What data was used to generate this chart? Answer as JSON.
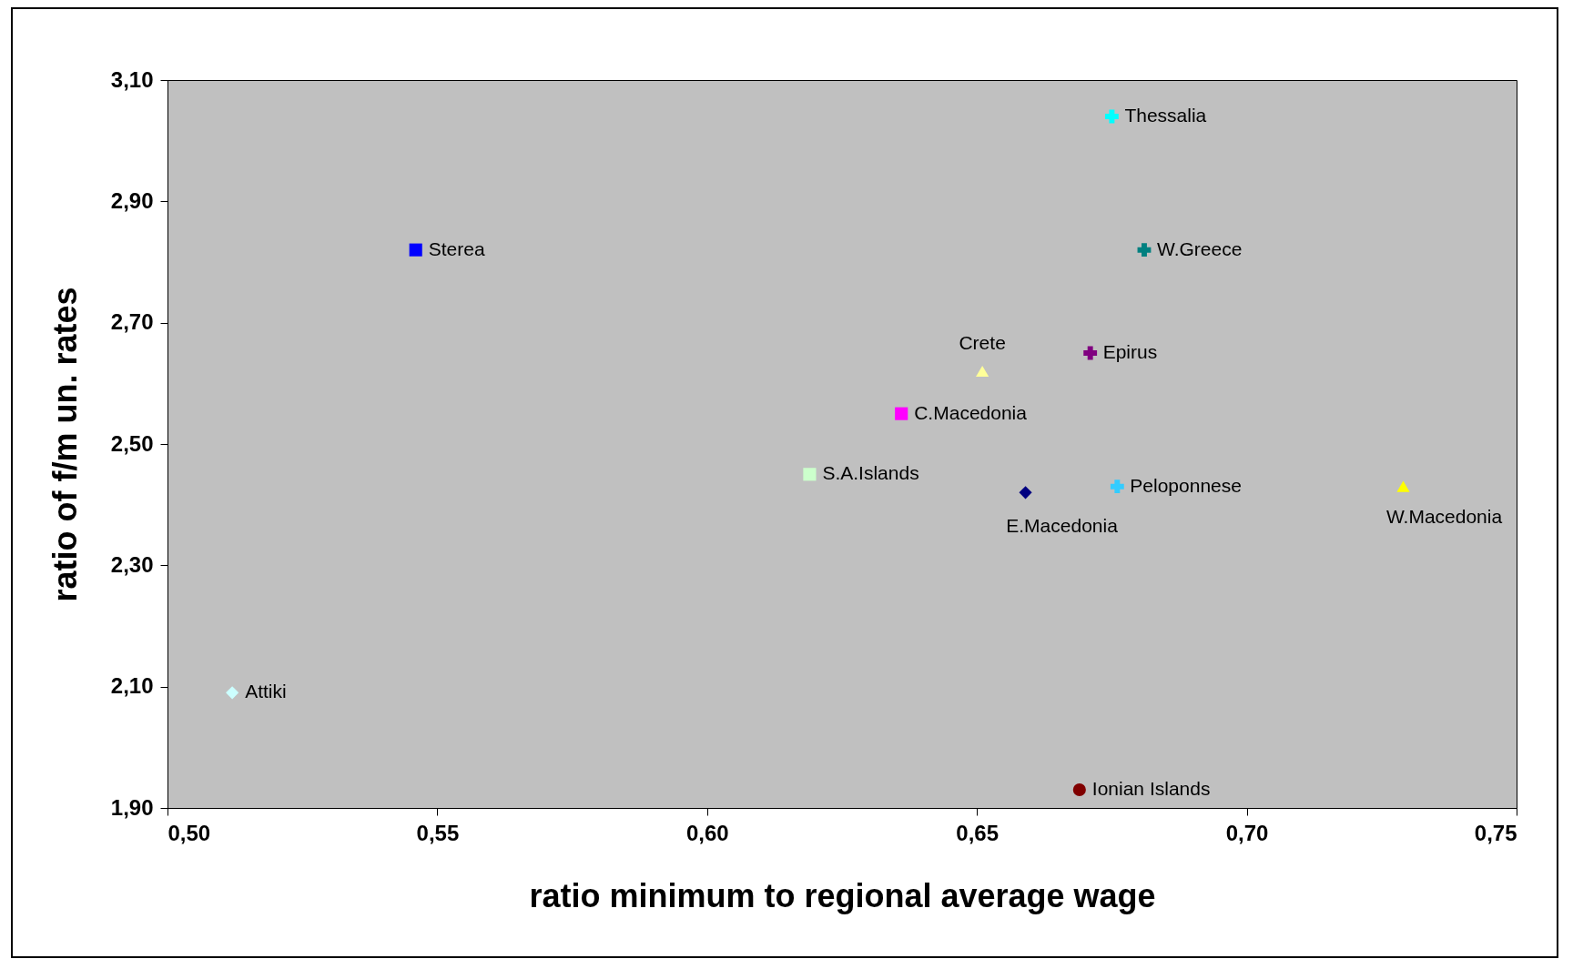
{
  "chart_data": {
    "type": "scatter",
    "xlabel": "ratio minimum to regional average wage",
    "ylabel": "ratio of  f/m un. rates",
    "xlim": [
      0.5,
      0.75
    ],
    "ylim": [
      1.9,
      3.1
    ],
    "xticks": [
      {
        "value": 0.5,
        "label": "0,50"
      },
      {
        "value": 0.55,
        "label": "0,55"
      },
      {
        "value": 0.6,
        "label": "0,60"
      },
      {
        "value": 0.65,
        "label": "0,65"
      },
      {
        "value": 0.7,
        "label": "0,70"
      },
      {
        "value": 0.75,
        "label": "0,75"
      }
    ],
    "yticks": [
      {
        "value": 1.9,
        "label": "1,90"
      },
      {
        "value": 2.1,
        "label": "2,10"
      },
      {
        "value": 2.3,
        "label": "2,30"
      },
      {
        "value": 2.5,
        "label": "2,50"
      },
      {
        "value": 2.7,
        "label": "2,70"
      },
      {
        "value": 2.9,
        "label": "2,90"
      },
      {
        "value": 3.1,
        "label": "3,10"
      }
    ],
    "grid": false,
    "series": [
      {
        "name": "Attiki",
        "color": "#ccffff",
        "marker": "diamond",
        "x": [
          0.512
        ],
        "values": [
          2.09
        ]
      },
      {
        "name": "Sterea",
        "color": "#0000ff",
        "marker": "square",
        "x": [
          0.546
        ],
        "values": [
          2.82
        ]
      },
      {
        "name": "Thessalia",
        "color": "#00ffff",
        "marker": "cross",
        "x": [
          0.675
        ],
        "values": [
          3.04
        ]
      },
      {
        "name": "W.Greece",
        "color": "#008080",
        "marker": "cross",
        "x": [
          0.681
        ],
        "values": [
          2.82
        ]
      },
      {
        "name": "Epirus",
        "color": "#800080",
        "marker": "cross",
        "x": [
          0.671
        ],
        "values": [
          2.65
        ]
      },
      {
        "name": "Crete",
        "color": "#ffff99",
        "marker": "triangle",
        "x": [
          0.651
        ],
        "values": [
          2.62
        ]
      },
      {
        "name": "C.Macedonia",
        "color": "#ff00ff",
        "marker": "square",
        "x": [
          0.636
        ],
        "values": [
          2.55
        ]
      },
      {
        "name": "S.A.Islands",
        "color": "#ccffcc",
        "marker": "square",
        "x": [
          0.619
        ],
        "values": [
          2.45
        ]
      },
      {
        "name": "E.Macedonia",
        "color": "#000080",
        "marker": "diamond",
        "x": [
          0.659
        ],
        "values": [
          2.42
        ]
      },
      {
        "name": "Peloponnese",
        "color": "#33ccff",
        "marker": "cross",
        "x": [
          0.676
        ],
        "values": [
          2.43
        ]
      },
      {
        "name": "W.Macedonia",
        "color": "#ffff00",
        "marker": "triangle",
        "x": [
          0.729
        ],
        "values": [
          2.43
        ]
      },
      {
        "name": "Ionian Islands",
        "color": "#800000",
        "marker": "circle",
        "x": [
          0.669
        ],
        "values": [
          1.93
        ]
      }
    ]
  }
}
